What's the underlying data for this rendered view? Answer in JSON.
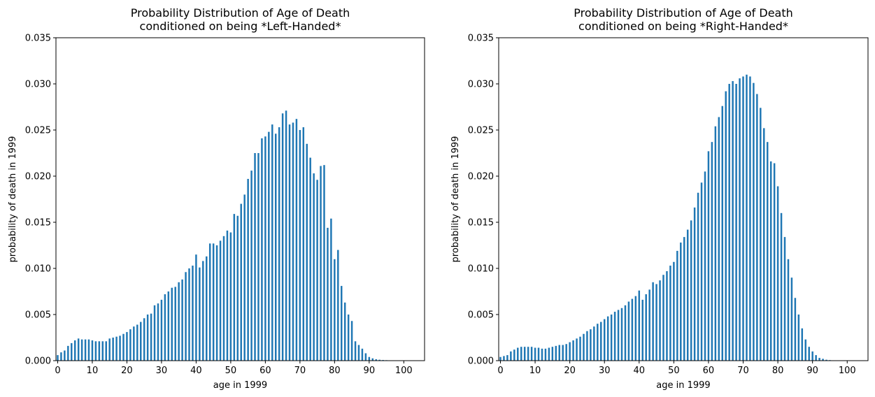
{
  "chart_data": [
    {
      "type": "bar",
      "title": "Probability Distribution of Age of Death\nconditioned on being *Left-Handed*",
      "xlabel": "age in 1999",
      "ylabel": "probability of death in 1999",
      "xlim": [
        -0.5,
        106
      ],
      "ylim": [
        0,
        0.035
      ],
      "xticks": [
        0,
        10,
        20,
        30,
        40,
        50,
        60,
        70,
        80,
        90,
        100
      ],
      "yticks": [
        0.0,
        0.005,
        0.01,
        0.015,
        0.02,
        0.025,
        0.03,
        0.035
      ],
      "ytick_labels": [
        "0.000",
        "0.005",
        "0.010",
        "0.015",
        "0.020",
        "0.025",
        "0.030",
        "0.035"
      ],
      "color": "#1f77b4",
      "x_start": 0,
      "values": [
        0.0006,
        0.0009,
        0.0011,
        0.0016,
        0.0019,
        0.0022,
        0.0024,
        0.0023,
        0.0023,
        0.0023,
        0.0022,
        0.0021,
        0.0021,
        0.0021,
        0.0021,
        0.0024,
        0.0025,
        0.0026,
        0.0027,
        0.0029,
        0.0031,
        0.0034,
        0.0037,
        0.0039,
        0.0042,
        0.0046,
        0.005,
        0.0051,
        0.006,
        0.0062,
        0.0066,
        0.0072,
        0.0075,
        0.0079,
        0.008,
        0.0085,
        0.0088,
        0.0096,
        0.01,
        0.0103,
        0.0115,
        0.0101,
        0.0108,
        0.0113,
        0.0127,
        0.0127,
        0.0125,
        0.013,
        0.0135,
        0.0141,
        0.0139,
        0.0159,
        0.0157,
        0.017,
        0.018,
        0.0197,
        0.0206,
        0.0225,
        0.0225,
        0.0241,
        0.0243,
        0.0248,
        0.0256,
        0.0246,
        0.0253,
        0.0268,
        0.0271,
        0.0256,
        0.0258,
        0.0262,
        0.025,
        0.0253,
        0.0235,
        0.022,
        0.0203,
        0.0196,
        0.0211,
        0.0212,
        0.0144,
        0.0154,
        0.011,
        0.012,
        0.0081,
        0.0063,
        0.005,
        0.0043,
        0.0021,
        0.0017,
        0.0013,
        0.0008,
        0.0004,
        0.00025,
        0.00015,
        0.0001,
        7e-05,
        5e-05,
        3e-05
      ]
    },
    {
      "type": "bar",
      "title": "Probability Distribution of Age of Death\nconditioned on being *Right-Handed*",
      "xlabel": "age in 1999",
      "ylabel": "probability of death in 1999",
      "xlim": [
        -0.5,
        106
      ],
      "ylim": [
        0,
        0.035
      ],
      "xticks": [
        0,
        10,
        20,
        30,
        40,
        50,
        60,
        70,
        80,
        90,
        100
      ],
      "yticks": [
        0.0,
        0.005,
        0.01,
        0.015,
        0.02,
        0.025,
        0.03,
        0.035
      ],
      "ytick_labels": [
        "0.000",
        "0.005",
        "0.010",
        "0.015",
        "0.020",
        "0.025",
        "0.030",
        "0.035"
      ],
      "color": "#1f77b4",
      "x_start": 0,
      "values": [
        0.0004,
        0.0005,
        0.0006,
        0.001,
        0.0012,
        0.0014,
        0.0015,
        0.0015,
        0.0015,
        0.0015,
        0.0014,
        0.0014,
        0.0013,
        0.0013,
        0.0014,
        0.0015,
        0.0016,
        0.0017,
        0.0017,
        0.0018,
        0.002,
        0.0022,
        0.0024,
        0.0026,
        0.0029,
        0.0032,
        0.0034,
        0.0037,
        0.004,
        0.0042,
        0.0045,
        0.0048,
        0.005,
        0.0053,
        0.0055,
        0.0057,
        0.006,
        0.0064,
        0.0067,
        0.007,
        0.0076,
        0.0066,
        0.0072,
        0.0077,
        0.0085,
        0.0083,
        0.0087,
        0.0093,
        0.0097,
        0.0103,
        0.0107,
        0.0119,
        0.0128,
        0.0134,
        0.0142,
        0.0152,
        0.0166,
        0.0182,
        0.0193,
        0.0205,
        0.0227,
        0.0237,
        0.0254,
        0.0264,
        0.0276,
        0.0292,
        0.03,
        0.0303,
        0.03,
        0.0306,
        0.0308,
        0.031,
        0.0308,
        0.0301,
        0.0289,
        0.0274,
        0.0252,
        0.0237,
        0.0216,
        0.0214,
        0.0189,
        0.016,
        0.0134,
        0.011,
        0.009,
        0.0068,
        0.005,
        0.0035,
        0.0023,
        0.0015,
        0.001,
        0.0006,
        0.0003,
        0.0002,
        0.0001,
        6e-05,
        3e-05,
        2e-05
      ]
    }
  ]
}
